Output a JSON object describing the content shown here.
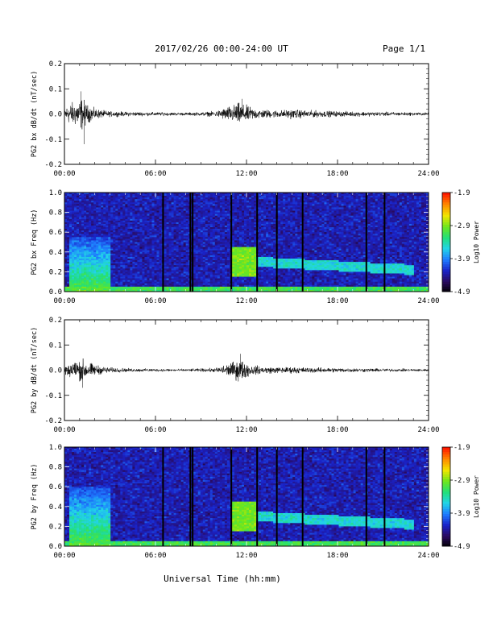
{
  "header": {
    "title": "2017/02/26  00:00-24:00 UT",
    "page": "Page 1/1"
  },
  "footer": {
    "xlabel": "Universal Time (hh:mm)"
  },
  "colors": {
    "trace": "#000000",
    "colormap": [
      "#000000",
      "#2a0a5e",
      "#1a23c8",
      "#1e7cff",
      "#22d4e8",
      "#22e07a",
      "#6ee61c",
      "#f2e600",
      "#ff8a00",
      "#ff1a00"
    ]
  },
  "chart_data": [
    {
      "type": "line",
      "ylabel": "PG2 bx dB/dt (nT/sec)",
      "x_ticks": [
        "00:00",
        "06:00",
        "12:00",
        "18:00",
        "24:00"
      ],
      "y_ticks": [
        "0.2",
        "0.1",
        "0.0",
        "-0.1",
        "-0.2"
      ],
      "xlim": [
        0,
        24
      ],
      "ylim": [
        -0.2,
        0.2
      ],
      "x_unit": "hours UT",
      "activity_envelope": [
        {
          "x": [
            0.0,
            0.4,
            0.8,
            1.2,
            1.5,
            2.0,
            2.5,
            3.0,
            4.0,
            6.0,
            8.0,
            9.0,
            10.0,
            10.6,
            11.0,
            11.5,
            12.0,
            12.5,
            13.0,
            14.0,
            15.0,
            16.0,
            18.0,
            20.0,
            22.0,
            24.0
          ],
          "amplitude": [
            0.035,
            0.06,
            0.07,
            0.09,
            0.05,
            0.03,
            0.02,
            0.015,
            0.012,
            0.01,
            0.008,
            0.01,
            0.015,
            0.035,
            0.045,
            0.06,
            0.045,
            0.03,
            0.025,
            0.02,
            0.025,
            0.02,
            0.015,
            0.012,
            0.01,
            0.008
          ]
        }
      ],
      "extremes": [
        {
          "x": 1.3,
          "y": -0.12
        },
        {
          "x": 1.1,
          "y": 0.09
        },
        {
          "x": 11.7,
          "y": 0.06
        }
      ]
    },
    {
      "type": "heatmap",
      "ylabel": "PG2 bx Freq (Hz)",
      "x_ticks": [
        "00:00",
        "06:00",
        "12:00",
        "18:00",
        "24:00"
      ],
      "y_ticks": [
        "1.0",
        "0.8",
        "0.6",
        "0.4",
        "0.2",
        "0.0"
      ],
      "xlim": [
        0,
        24
      ],
      "ylim": [
        0,
        1
      ],
      "colorbar": {
        "label": "Log10 Power",
        "ticks": [
          "-1.9",
          "-2.9",
          "-3.9",
          "-4.9"
        ],
        "range": [
          -4.9,
          -1.9
        ]
      },
      "data_gaps_hours": [
        6.5,
        8.3,
        8.45,
        11.0,
        12.7,
        14.0,
        15.7,
        19.9,
        21.1
      ],
      "features": [
        {
          "desc": "broadband enhancement",
          "x_range": [
            0.3,
            3.0
          ],
          "f_range": [
            0.0,
            0.55
          ],
          "log_power": -3.0
        },
        {
          "desc": "Pc1 band",
          "x_range": [
            11.0,
            12.6
          ],
          "f_range": [
            0.15,
            0.45
          ],
          "log_power": -2.9
        },
        {
          "desc": "Pc1 descending band",
          "x_range": [
            12.6,
            23.0
          ],
          "f_range": [
            0.18,
            0.32
          ],
          "log_power": -3.5
        },
        {
          "desc": "low-frequency floor",
          "x_range": [
            0.0,
            24.0
          ],
          "f_range": [
            0.0,
            0.05
          ],
          "log_power": -3.1
        }
      ]
    },
    {
      "type": "line",
      "ylabel": "PG2 by dB/dt (nT/sec)",
      "x_ticks": [
        "00:00",
        "06:00",
        "12:00",
        "18:00",
        "24:00"
      ],
      "y_ticks": [
        "0.2",
        "0.1",
        "0.0",
        "-0.1",
        "-0.2"
      ],
      "xlim": [
        0,
        24
      ],
      "ylim": [
        -0.2,
        0.2
      ],
      "x_unit": "hours UT",
      "activity_envelope": [
        {
          "x": [
            0.0,
            0.4,
            0.8,
            1.2,
            1.5,
            2.0,
            2.5,
            3.0,
            4.0,
            6.0,
            8.0,
            9.0,
            10.0,
            10.6,
            11.0,
            11.5,
            12.0,
            12.5,
            13.0,
            14.0,
            15.0,
            16.0,
            18.0,
            20.0,
            22.0,
            24.0
          ],
          "amplitude": [
            0.03,
            0.045,
            0.055,
            0.06,
            0.045,
            0.03,
            0.02,
            0.015,
            0.01,
            0.008,
            0.007,
            0.009,
            0.012,
            0.03,
            0.04,
            0.06,
            0.04,
            0.025,
            0.02,
            0.016,
            0.018,
            0.015,
            0.012,
            0.01,
            0.008,
            0.007
          ]
        }
      ],
      "extremes": [
        {
          "x": 1.2,
          "y": -0.07
        },
        {
          "x": 11.6,
          "y": 0.065
        }
      ]
    },
    {
      "type": "heatmap",
      "ylabel": "PG2 by Freq (Hz)",
      "x_ticks": [
        "00:00",
        "06:00",
        "12:00",
        "18:00",
        "24:00"
      ],
      "y_ticks": [
        "1.0",
        "0.8",
        "0.6",
        "0.4",
        "0.2",
        "0.0"
      ],
      "xlim": [
        0,
        24
      ],
      "ylim": [
        0,
        1
      ],
      "colorbar": {
        "label": "Log10 Power",
        "ticks": [
          "-1.9",
          "-2.9",
          "-3.9",
          "-4.9"
        ],
        "range": [
          -4.9,
          -1.9
        ]
      },
      "data_gaps_hours": [
        6.5,
        8.3,
        8.45,
        11.0,
        12.7,
        14.0,
        15.7,
        19.9,
        21.1
      ],
      "features": [
        {
          "desc": "broadband enhancement",
          "x_range": [
            0.3,
            3.0
          ],
          "f_range": [
            0.0,
            0.6
          ],
          "log_power": -3.0
        },
        {
          "desc": "Pc1 band",
          "x_range": [
            11.0,
            12.6
          ],
          "f_range": [
            0.15,
            0.45
          ],
          "log_power": -2.9
        },
        {
          "desc": "Pc1 descending band",
          "x_range": [
            12.6,
            23.0
          ],
          "f_range": [
            0.18,
            0.32
          ],
          "log_power": -3.5
        },
        {
          "desc": "low-frequency floor",
          "x_range": [
            0.0,
            24.0
          ],
          "f_range": [
            0.0,
            0.05
          ],
          "log_power": -3.1
        }
      ]
    }
  ]
}
